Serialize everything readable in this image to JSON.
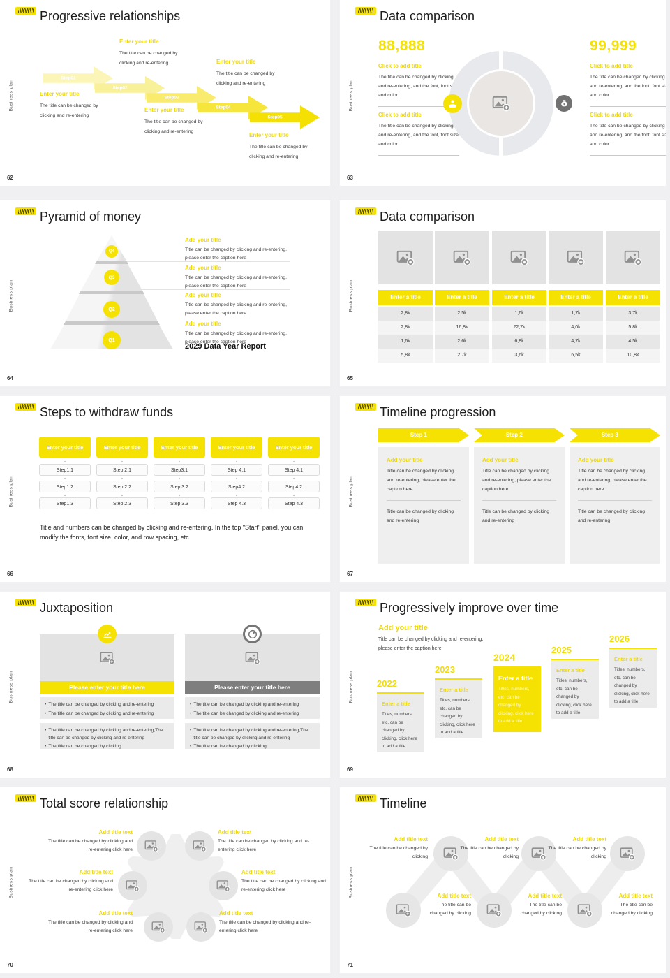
{
  "colors": {
    "accent": "#F5E203",
    "accent_text": "#EED90A",
    "dark_bar": "#7E7E7E",
    "canvas": "#F0F0F2"
  },
  "common": {
    "sidebar_text": "Business plan"
  },
  "slides": [
    {
      "number": "62",
      "title": "Progressive relationships",
      "arrows": [
        "Step01",
        "Step02",
        "Step03",
        "Step04",
        "Step05"
      ],
      "blocks": [
        {
          "title": "Enter your title",
          "body": "The title can be changed by clicking and re-entering"
        },
        {
          "title": "Enter your title",
          "body": "The title can be changed by clicking and re-entering"
        },
        {
          "title": "Enter your title",
          "body": "The title can be changed by clicking and re-entering"
        },
        {
          "title": "Enter your title",
          "body": "The title can be changed by clicking and re-entering"
        },
        {
          "title": "Enter your title",
          "body": "The title can be changed by clicking and re-entering"
        }
      ]
    },
    {
      "number": "63",
      "title": "Data comparison",
      "left_value": "88,888",
      "right_value": "99,999",
      "left_sections": [
        {
          "title": "Click to add title",
          "body": "The title can be changed by clicking and re-entering, and the font, font size and color"
        },
        {
          "title": "Click to add title",
          "body": "The title can be changed by clicking and re-entering, and the font, font size and color"
        }
      ],
      "right_sections": [
        {
          "title": "Click to add title",
          "body": "The title can be changed by clicking and re-entering, and the font, font size and color"
        },
        {
          "title": "Click to add title",
          "body": "The title can be changed by clicking and re-entering, and the font, font size and color"
        }
      ]
    },
    {
      "number": "64",
      "title": "Pyramid of money",
      "levels": [
        "Q4",
        "Q3",
        "Q2",
        "Q1"
      ],
      "items": [
        {
          "title": "Add your title",
          "body": "Title can be changed by clicking and re-entering, please enter the caption here"
        },
        {
          "title": "Add your title",
          "body": "Title can be changed by clicking and re-entering, please enter the caption here"
        },
        {
          "title": "Add your title",
          "body": "Title can be changed by clicking and re-entering, please enter the caption here"
        },
        {
          "title": "Add your title",
          "body": "Title can be changed by clicking and re-entering, please enter the caption here"
        }
      ],
      "footer": "2029 Data Year Report"
    },
    {
      "number": "65",
      "title": "Data comparison",
      "table": {
        "headers": [
          "Enter a title",
          "Enter a title",
          "Enter a title",
          "Enter a title",
          "Enter a title"
        ],
        "rows": [
          [
            "2,8k",
            "2,5k",
            "1,6k",
            "1,7k",
            "3,7k"
          ],
          [
            "2,8k",
            "16,8k",
            "22,7k",
            "4,0k",
            "5,8k"
          ],
          [
            "1,6k",
            "2,6k",
            "6,8k",
            "4,7k",
            "4,5k"
          ],
          [
            "5,8k",
            "2,7k",
            "3,6k",
            "6,5k",
            "10,8k"
          ]
        ]
      }
    },
    {
      "number": "66",
      "title": "Steps to withdraw funds",
      "columns": [
        {
          "header": "Enter your title",
          "steps": [
            "Step1.1",
            "Step1.2",
            "Step1.3"
          ]
        },
        {
          "header": "Enter your title",
          "steps": [
            "Step 2.1",
            "Step 2.2",
            "Step 2.3"
          ]
        },
        {
          "header": "Enter your title",
          "steps": [
            "Step3.1",
            "Step 3.2",
            "Step 3.3"
          ]
        },
        {
          "header": "Enter your title",
          "steps": [
            "Step 4.1",
            "Step4.2",
            "Step 4.3"
          ]
        },
        {
          "header": "Enter your title",
          "steps": [
            "Step 4.1",
            "Step4.2",
            "Step 4.3"
          ]
        }
      ],
      "note": "Title and numbers can be changed by clicking and re-entering. In the top \"Start\" panel, you can modify the fonts, font size, color, and row spacing, etc"
    },
    {
      "number": "67",
      "title": "Timeline progression",
      "steps": [
        {
          "label": "Step 1",
          "title": "Add your title",
          "body": "Title can be changed by clicking and re-entering, please enter the caption here",
          "footer": "Title can be changed by clicking and re-entering"
        },
        {
          "label": "Step 2",
          "title": "Add your title",
          "body": "Title can be changed by clicking and re-entering, please enter the caption here",
          "footer": "Title can be changed by clicking and re-entering"
        },
        {
          "label": "Step 3",
          "title": "Add your title",
          "body": "Title can be changed by clicking and re-entering, please enter the caption here",
          "footer": "Title can be changed by clicking and re-entering"
        }
      ]
    },
    {
      "number": "68",
      "title": "Juxtaposition",
      "panels": [
        {
          "bar": "Please enter your title here",
          "bullets1": [
            "The title can be changed by clicking and re-entering",
            "The title can be changed by clicking and re-entering"
          ],
          "bullets2": [
            "The title can be changed by clicking and re-entering,The title can be changed by clicking and re-entering",
            "The title can be changed by clicking"
          ]
        },
        {
          "bar": "Please enter your title here",
          "bullets1": [
            "The title can be changed by clicking and re-entering",
            "The title can be changed by clicking and re-entering"
          ],
          "bullets2": [
            "The title can be changed by clicking and re-entering,The title can be changed by clicking and re-entering",
            "The title can be changed by clicking"
          ]
        }
      ]
    },
    {
      "number": "69",
      "title": "Progressively improve over time",
      "intro": {
        "title": "Add your title",
        "body": "Title can be changed by clicking and re-entering, please enter the caption here"
      },
      "years": [
        {
          "year": "2022",
          "title": "Enter a title",
          "body": "Titles, numbers, etc. can be changed by clicking, click here to add a title"
        },
        {
          "year": "2023",
          "title": "Enter a title",
          "body": "Titles, numbers, etc. can be changed by clicking, click here to add a title"
        },
        {
          "year": "2024",
          "title": "Enter a title",
          "body": "Titles, numbers, etc. can be changed by clicking, click here to add a title"
        },
        {
          "year": "2025",
          "title": "Enter a title",
          "body": "Titles, numbers, etc. can be changed by clicking, click here to add a title"
        },
        {
          "year": "2026",
          "title": "Enter a title",
          "body": "Titles, numbers, etc. can be changed by clicking, click here to add a title"
        }
      ]
    },
    {
      "number": "70",
      "title": "Total score relationship",
      "items": [
        {
          "title": "Add title text",
          "body": "The title can be changed by clicking and re-entering click here"
        },
        {
          "title": "Add title text",
          "body": "The title can be changed by clicking and re-entering click here"
        },
        {
          "title": "Add title text",
          "body": "The title can be changed by clicking and re-entering click here"
        },
        {
          "title": "Add title text",
          "body": "The title can be changed by clicking and re-entering click here"
        },
        {
          "title": "Add title text",
          "body": "The title can be changed by clicking and re-entering click here"
        },
        {
          "title": "Add title text",
          "body": "The title can be changed by clicking and re-entering click here"
        }
      ]
    },
    {
      "number": "71",
      "title": "Timeline",
      "items": [
        {
          "title": "Add title text",
          "body": "The title can be changed by clicking"
        },
        {
          "title": "Add title text",
          "body": "The title can be changed by clicking"
        },
        {
          "title": "Add title text",
          "body": "The title can be changed by clicking"
        },
        {
          "title": "Add title text",
          "body": "The title can be changed by clicking"
        },
        {
          "title": "Add title text",
          "body": "The title can be changed by clicking"
        },
        {
          "title": "Add title text",
          "body": "The title can be changed by clicking"
        }
      ]
    }
  ]
}
